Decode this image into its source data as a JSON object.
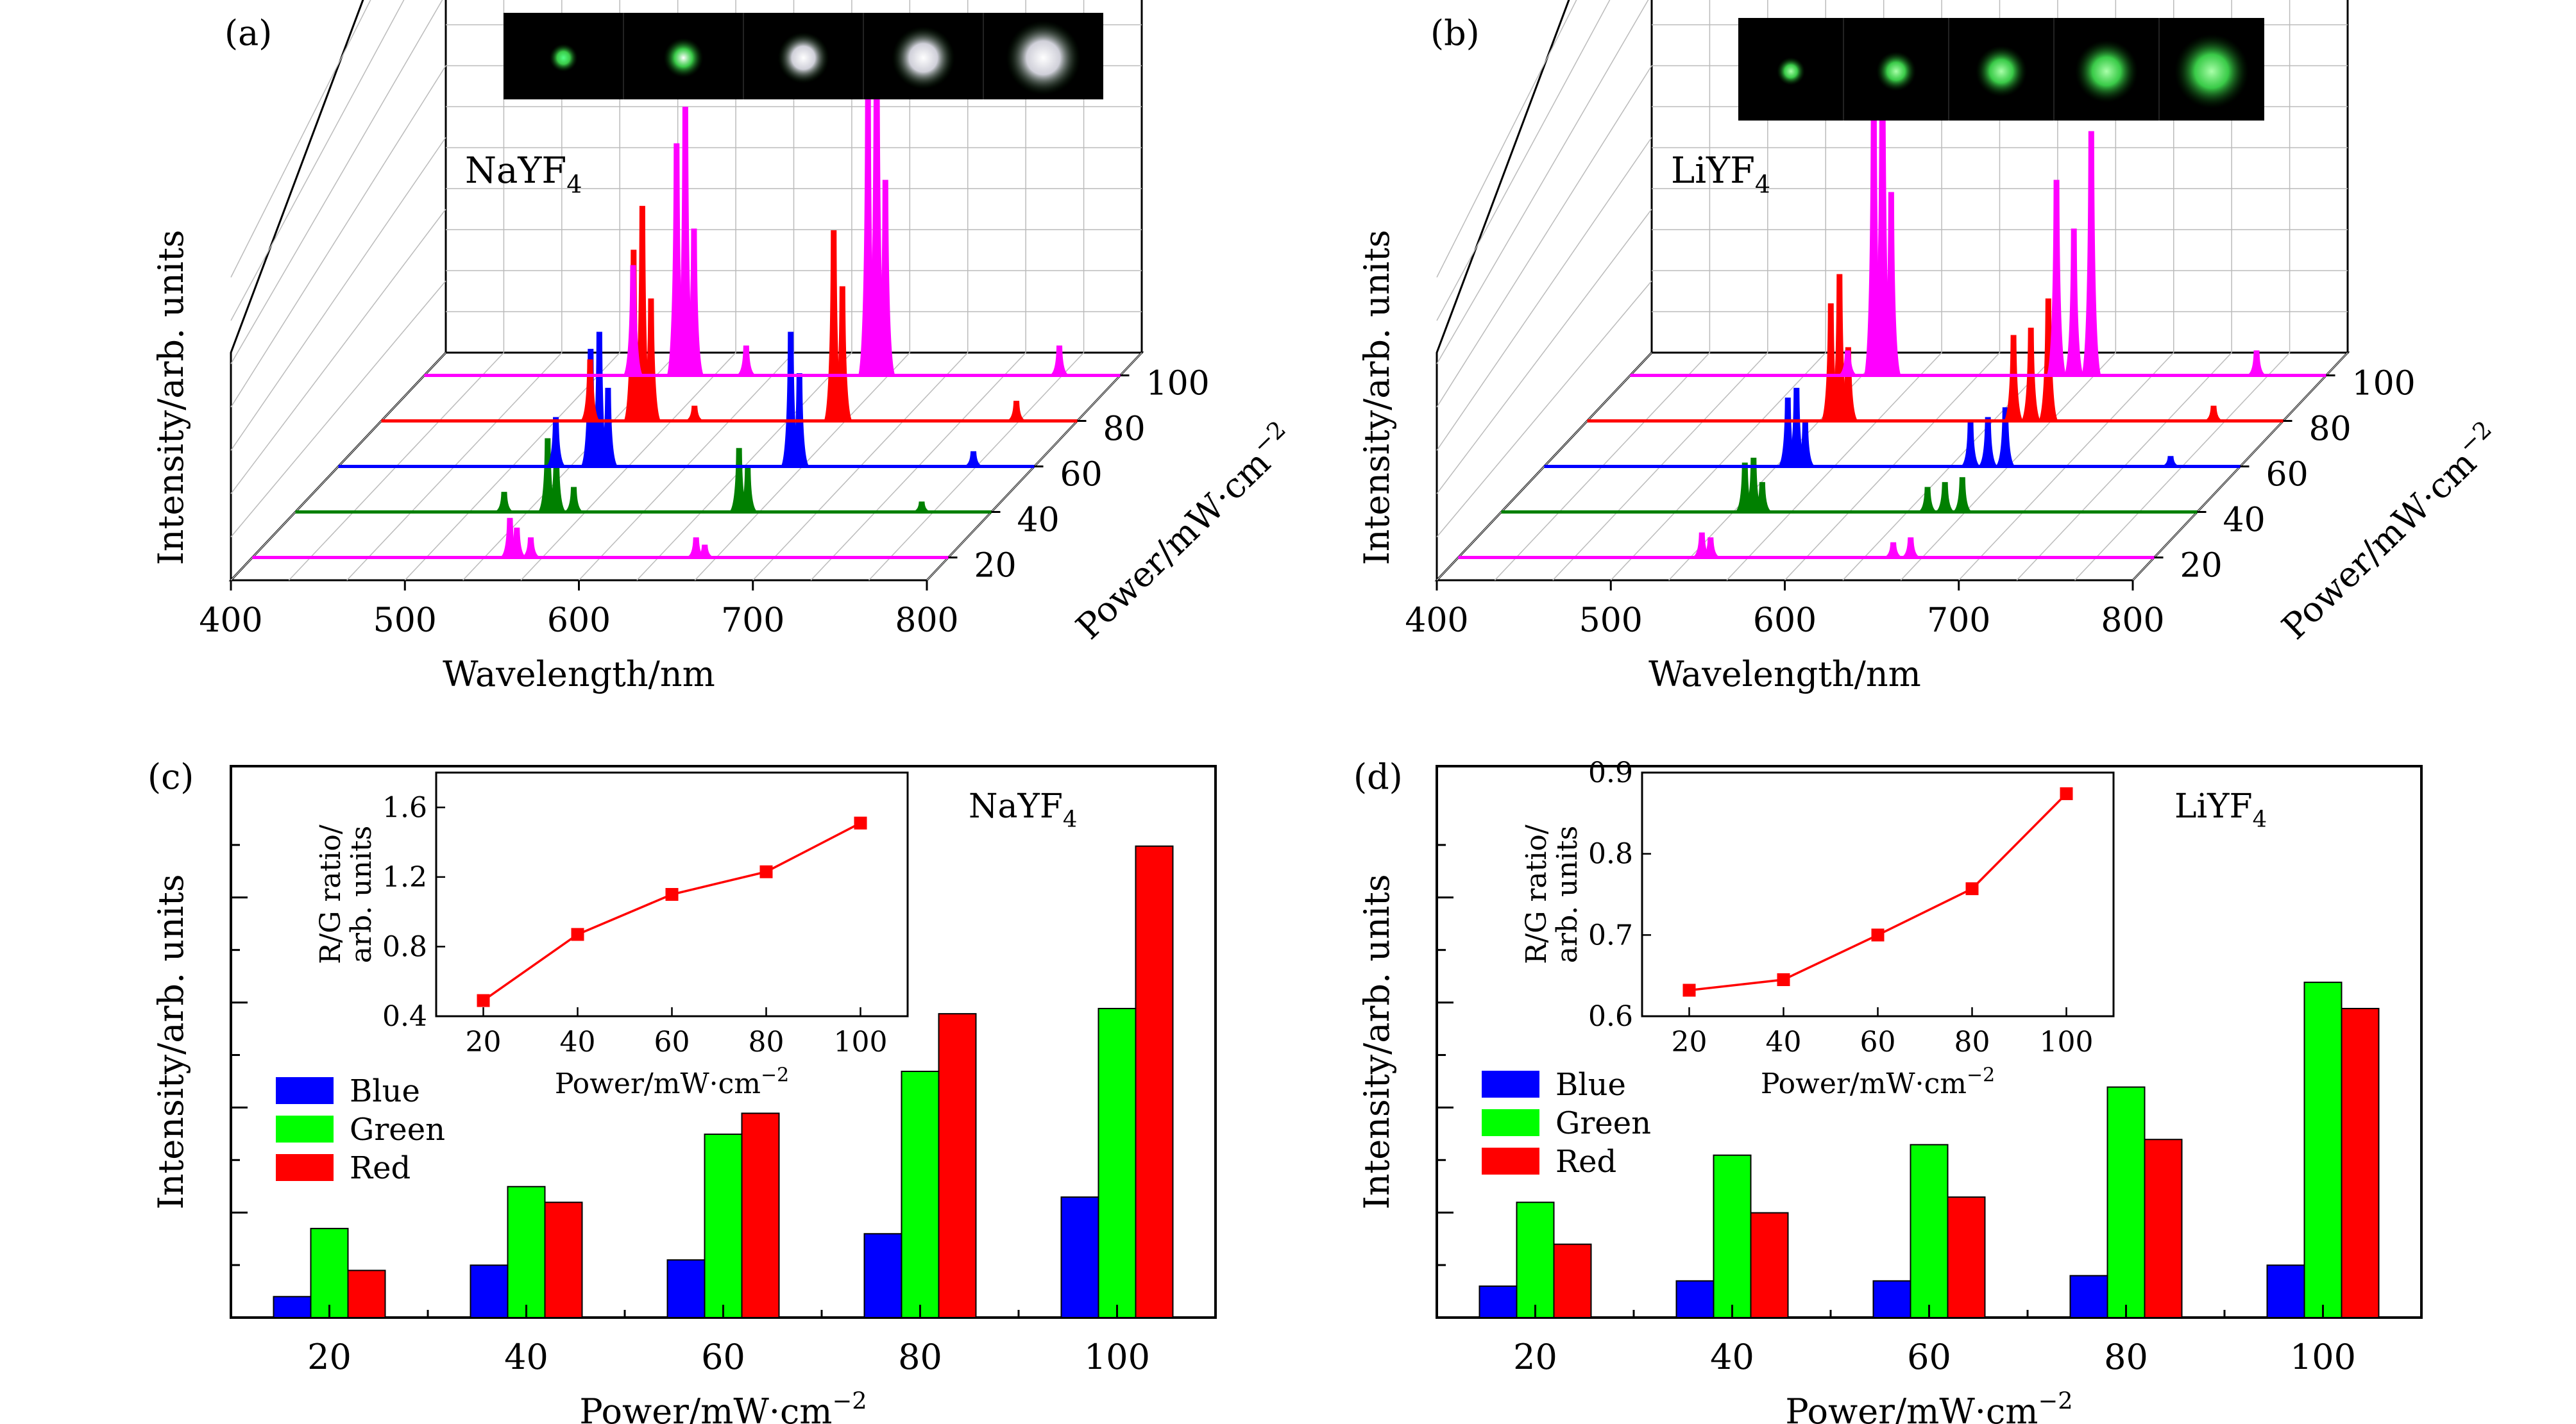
{
  "chart_data": [
    {
      "panel": "(a)",
      "type": "line",
      "material": "NaYF",
      "material_sub": "4",
      "xlabel": "Wavelength/nm",
      "ylabel": "Intensity/arb. units",
      "zlabel": "Power/mW·cm",
      "zlabel_sup": "−2",
      "xlim": [
        400,
        800
      ],
      "x_ticks": [
        "400",
        "500",
        "600",
        "700",
        "800"
      ],
      "z_ticks": [
        "20",
        "40",
        "60",
        "80",
        "100"
      ],
      "series": [
        {
          "power": 20,
          "color": "#ff00ff",
          "peaks": [
            [
              548,
              0.16
            ],
            [
              552,
              0.12
            ],
            [
              560,
              0.08
            ],
            [
              655,
              0.08
            ],
            [
              660,
              0.05
            ]
          ]
        },
        {
          "power": 40,
          "color": "#008000",
          "peaks": [
            [
              520,
              0.08
            ],
            [
              545,
              0.3
            ],
            [
              550,
              0.22
            ],
            [
              560,
              0.1
            ],
            [
              655,
              0.26
            ],
            [
              660,
              0.18
            ],
            [
              760,
              0.04
            ]
          ]
        },
        {
          "power": 60,
          "color": "#0000ff",
          "peaks": [
            [
              525,
              0.2
            ],
            [
              545,
              0.48
            ],
            [
              550,
              0.55
            ],
            [
              555,
              0.32
            ],
            [
              660,
              0.55
            ],
            [
              665,
              0.38
            ],
            [
              765,
              0.06
            ]
          ]
        },
        {
          "power": 80,
          "color": "#ff0000",
          "peaks": [
            [
              520,
              0.25
            ],
            [
              545,
              0.7
            ],
            [
              550,
              0.88
            ],
            [
              555,
              0.5
            ],
            [
              580,
              0.06
            ],
            [
              660,
              0.78
            ],
            [
              665,
              0.55
            ],
            [
              765,
              0.08
            ]
          ]
        },
        {
          "power": 100,
          "color": "#ff00ff",
          "peaks": [
            [
              520,
              0.45
            ],
            [
              545,
              0.95
            ],
            [
              550,
              1.1
            ],
            [
              555,
              0.6
            ],
            [
              585,
              0.12
            ],
            [
              655,
              1.15
            ],
            [
              660,
              1.45
            ],
            [
              665,
              0.8
            ],
            [
              765,
              0.12
            ]
          ]
        }
      ]
    },
    {
      "panel": "(b)",
      "type": "line",
      "material": "LiYF",
      "material_sub": "4",
      "xlabel": "Wavelength/nm",
      "ylabel": "Intensity/arb. units",
      "zlabel": "Power/mW·cm",
      "zlabel_sup": "−2",
      "xlim": [
        400,
        800
      ],
      "x_ticks": [
        "400",
        "500",
        "600",
        "700",
        "800"
      ],
      "z_ticks": [
        "20",
        "40",
        "60",
        "80",
        "100"
      ],
      "series": [
        {
          "power": 20,
          "color": "#ff00ff",
          "peaks": [
            [
              540,
              0.1
            ],
            [
              545,
              0.08
            ],
            [
              650,
              0.06
            ],
            [
              660,
              0.08
            ]
          ]
        },
        {
          "power": 40,
          "color": "#008000",
          "peaks": [
            [
              540,
              0.2
            ],
            [
              545,
              0.22
            ],
            [
              550,
              0.12
            ],
            [
              645,
              0.1
            ],
            [
              655,
              0.12
            ],
            [
              665,
              0.14
            ]
          ]
        },
        {
          "power": 60,
          "color": "#0000ff",
          "peaks": [
            [
              540,
              0.28
            ],
            [
              545,
              0.32
            ],
            [
              550,
              0.18
            ],
            [
              645,
              0.18
            ],
            [
              655,
              0.2
            ],
            [
              665,
              0.24
            ],
            [
              760,
              0.04
            ]
          ]
        },
        {
          "power": 80,
          "color": "#ff0000",
          "peaks": [
            [
              540,
              0.48
            ],
            [
              545,
              0.6
            ],
            [
              550,
              0.3
            ],
            [
              645,
              0.35
            ],
            [
              655,
              0.38
            ],
            [
              665,
              0.5
            ],
            [
              760,
              0.06
            ]
          ]
        },
        {
          "power": 100,
          "color": "#ff00ff",
          "peaks": [
            [
              525,
              0.1
            ],
            [
              540,
              1.2
            ],
            [
              545,
              1.4
            ],
            [
              550,
              0.75
            ],
            [
              645,
              0.8
            ],
            [
              655,
              0.6
            ],
            [
              665,
              1.0
            ],
            [
              760,
              0.1
            ]
          ]
        }
      ]
    },
    {
      "panel": "(c)",
      "type": "bar",
      "material": "NaYF",
      "material_sub": "4",
      "xlabel": "Power/mW·cm",
      "xlabel_sup": "−2",
      "ylabel": "Intensity/arb. units",
      "categories": [
        "20",
        "40",
        "60",
        "80",
        "100"
      ],
      "series": [
        {
          "name": "Blue",
          "color": "#0000ff",
          "values": [
            0.04,
            0.1,
            0.11,
            0.16,
            0.23
          ]
        },
        {
          "name": "Green",
          "color": "#00ff00",
          "values": [
            0.17,
            0.25,
            0.35,
            0.47,
            0.59
          ]
        },
        {
          "name": "Red",
          "color": "#ff0000",
          "values": [
            0.09,
            0.22,
            0.39,
            0.58,
            0.9
          ]
        }
      ],
      "ylim": [
        0,
        1.0
      ],
      "inset": {
        "type": "line",
        "xlabel": "Power/mW·cm",
        "xlabel_sup": "−2",
        "ylabel_line1": "R/G ratio/",
        "ylabel_line2": "arb. units",
        "x": [
          20,
          40,
          60,
          80,
          100
        ],
        "y": [
          0.49,
          0.87,
          1.1,
          1.23,
          1.51
        ],
        "xlim": [
          10,
          110
        ],
        "ylim": [
          0.4,
          1.8
        ],
        "x_ticks": [
          "20",
          "40",
          "60",
          "80",
          "100"
        ],
        "y_ticks": [
          "0.4",
          "0.8",
          "1.2",
          "1.6"
        ],
        "color": "#ff0000"
      }
    },
    {
      "panel": "(d)",
      "type": "bar",
      "material": "LiYF",
      "material_sub": "4",
      "xlabel": "Power/mW·cm",
      "xlabel_sup": "−2",
      "ylabel": "Intensity/arb. units",
      "categories": [
        "20",
        "40",
        "60",
        "80",
        "100"
      ],
      "series": [
        {
          "name": "Blue",
          "color": "#0000ff",
          "values": [
            0.06,
            0.07,
            0.07,
            0.08,
            0.1
          ]
        },
        {
          "name": "Green",
          "color": "#00ff00",
          "values": [
            0.22,
            0.31,
            0.33,
            0.44,
            0.64
          ]
        },
        {
          "name": "Red",
          "color": "#ff0000",
          "values": [
            0.14,
            0.2,
            0.23,
            0.34,
            0.59
          ]
        }
      ],
      "ylim": [
        0,
        1.0
      ],
      "inset": {
        "type": "line",
        "xlabel": "Power/mW·cm",
        "xlabel_sup": "−2",
        "ylabel_line1": "R/G ratio/",
        "ylabel_line2": "arb. units",
        "x": [
          20,
          40,
          60,
          80,
          100
        ],
        "y": [
          0.632,
          0.645,
          0.7,
          0.757,
          0.874
        ],
        "xlim": [
          10,
          110
        ],
        "ylim": [
          0.6,
          0.9
        ],
        "x_ticks": [
          "20",
          "40",
          "60",
          "80",
          "100"
        ],
        "y_ticks": [
          "0.6",
          "0.7",
          "0.8",
          "0.9"
        ],
        "color": "#ff0000"
      }
    }
  ]
}
